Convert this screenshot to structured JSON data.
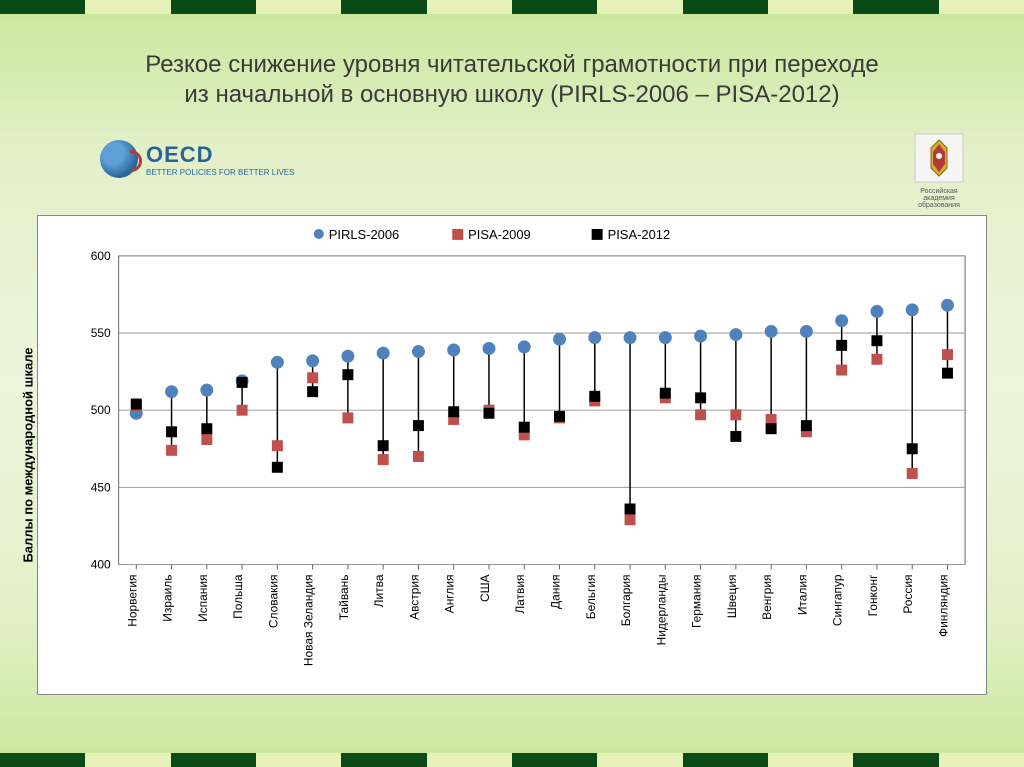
{
  "title": {
    "line1": "Резкое снижение уровня читательской грамотности при переходе",
    "line2": "из начальной в основную школу (PIRLS-2006 – PISA-2012)"
  },
  "oecd": {
    "name": "OECD",
    "tagline": "BETTER POLICIES FOR BETTER LIVES"
  },
  "coat": {
    "caption": "Российская академия образования"
  },
  "bars": {
    "colors": [
      "#0a4b17",
      "#e6f2b8",
      "#0a4b17",
      "#e6f2b8",
      "#0a4b17",
      "#e6f2b8",
      "#0a4b17",
      "#e6f2b8",
      "#0a4b17",
      "#e6f2b8",
      "#0a4b17",
      "#e6f2b8"
    ]
  },
  "chart": {
    "type": "scatter-hilo",
    "ylabel": "Баллы по международной шкале",
    "ylim": [
      400,
      600
    ],
    "yticks": [
      400,
      450,
      500,
      550,
      600
    ],
    "grid_color": "#999999",
    "background_color": "#ffffff",
    "legend": {
      "items": [
        {
          "label": "PIRLS-2006",
          "marker": "circle",
          "color": "#4f81bd"
        },
        {
          "label": "PISA-2009",
          "marker": "square",
          "color": "#c0504d"
        },
        {
          "label": "PISA-2012",
          "marker": "square",
          "color": "#000000"
        }
      ],
      "fontsize": 13
    },
    "marker_size": 11,
    "tick_fontsize": 12,
    "label_fontsize": 13,
    "countries": [
      {
        "name": "Норвегия",
        "pirls2006": 498,
        "pisa2009": 503,
        "pisa2012": 504
      },
      {
        "name": "Израиль",
        "pirls2006": 512,
        "pisa2009": 474,
        "pisa2012": 486
      },
      {
        "name": "Испания",
        "pirls2006": 513,
        "pisa2009": 481,
        "pisa2012": 488
      },
      {
        "name": "Польша",
        "pirls2006": 519,
        "pisa2009": 500,
        "pisa2012": 518
      },
      {
        "name": "Словакия",
        "pirls2006": 531,
        "pisa2009": 477,
        "pisa2012": 463
      },
      {
        "name": "Новая Зеландия",
        "pirls2006": 532,
        "pisa2009": 521,
        "pisa2012": 512
      },
      {
        "name": "Тайвань",
        "pirls2006": 535,
        "pisa2009": 495,
        "pisa2012": 523
      },
      {
        "name": "Литва",
        "pirls2006": 537,
        "pisa2009": 468,
        "pisa2012": 477
      },
      {
        "name": "Австрия",
        "pirls2006": 538,
        "pisa2009": 470,
        "pisa2012": 490
      },
      {
        "name": "Англия",
        "pirls2006": 539,
        "pisa2009": 494,
        "pisa2012": 499
      },
      {
        "name": "США",
        "pirls2006": 540,
        "pisa2009": 500,
        "pisa2012": 498
      },
      {
        "name": "Латвия",
        "pirls2006": 541,
        "pisa2009": 484,
        "pisa2012": 489
      },
      {
        "name": "Дания",
        "pirls2006": 546,
        "pisa2009": 495,
        "pisa2012": 496
      },
      {
        "name": "Бельгия",
        "pirls2006": 547,
        "pisa2009": 506,
        "pisa2012": 509
      },
      {
        "name": "Болгария",
        "pirls2006": 547,
        "pisa2009": 429,
        "pisa2012": 436
      },
      {
        "name": "Нидерланды",
        "pirls2006": 547,
        "pisa2009": 508,
        "pisa2012": 511
      },
      {
        "name": "Германия",
        "pirls2006": 548,
        "pisa2009": 497,
        "pisa2012": 508
      },
      {
        "name": "Швеция",
        "pirls2006": 549,
        "pisa2009": 497,
        "pisa2012": 483
      },
      {
        "name": "Венгрия",
        "pirls2006": 551,
        "pisa2009": 494,
        "pisa2012": 488
      },
      {
        "name": "Италия",
        "pirls2006": 551,
        "pisa2009": 486,
        "pisa2012": 490
      },
      {
        "name": "Сингапур",
        "pirls2006": 558,
        "pisa2009": 526,
        "pisa2012": 542
      },
      {
        "name": "Гонконг",
        "pirls2006": 564,
        "pisa2009": 533,
        "pisa2012": 545
      },
      {
        "name": "Россия",
        "pirls2006": 565,
        "pisa2009": 459,
        "pisa2012": 475
      },
      {
        "name": "Финляндия",
        "pirls2006": 568,
        "pisa2009": 536,
        "pisa2012": 524
      }
    ]
  }
}
